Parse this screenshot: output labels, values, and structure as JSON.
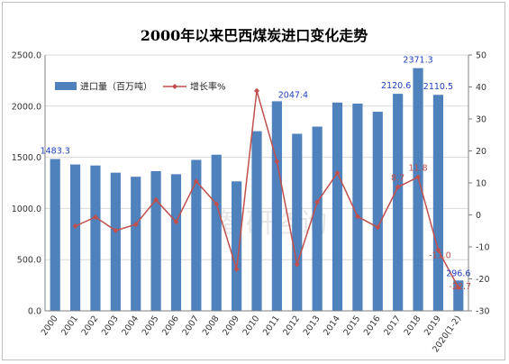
{
  "chart_data": {
    "type": "bar+line",
    "title": "2000年以来巴西煤炭进口变化走势",
    "categories": [
      "2000",
      "2001",
      "2002",
      "2003",
      "2004",
      "2005",
      "2006",
      "2007",
      "2008",
      "2009",
      "2010",
      "2011",
      "2012",
      "2013",
      "2014",
      "2015",
      "2016",
      "2017",
      "2018",
      "2019",
      "2020(1-2)"
    ],
    "series": [
      {
        "name": "进口量（百万吨）",
        "kind": "bar",
        "axis": "left",
        "color": "#4f81bd",
        "values": [
          1483.3,
          1430,
          1420,
          1350,
          1310,
          1365,
          1335,
          1475,
          1525,
          1265,
          1755,
          2047.4,
          1730,
          1800,
          2035,
          2025,
          1945,
          2120.6,
          2371.3,
          2110.5,
          296.6
        ]
      },
      {
        "name": "增长率%",
        "kind": "line",
        "axis": "right",
        "color": "#c0504d",
        "values": [
          null,
          -3.5,
          -0.7,
          -4.9,
          -3.0,
          4.7,
          -2.2,
          10.5,
          3.4,
          -17.0,
          38.8,
          16.7,
          -15.5,
          4.0,
          13.1,
          -0.5,
          -3.9,
          8.7,
          11.8,
          -11.0,
          -22.7
        ]
      }
    ],
    "ylim_left": [
      0,
      2500
    ],
    "yticks_left": [
      "0.0",
      "500.0",
      "1000.0",
      "1500.0",
      "2000.0",
      "2500.0"
    ],
    "ylim_right": [
      -30,
      50
    ],
    "yticks_right": [
      "-30",
      "-20",
      "-10",
      "0",
      "10",
      "20",
      "30",
      "40",
      "50"
    ],
    "bar_labels": [
      {
        "index": 0,
        "text": "1483.3"
      },
      {
        "index": 11,
        "text": "2047.4"
      },
      {
        "index": 17,
        "text": "2120.6"
      },
      {
        "index": 18,
        "text": "2371.3"
      },
      {
        "index": 19,
        "text": "2110.5"
      },
      {
        "index": 20,
        "text": "296.6"
      }
    ],
    "line_labels": [
      {
        "index": 17,
        "text": "8.7"
      },
      {
        "index": 18,
        "text": "11.8"
      },
      {
        "index": 19,
        "text": "-11.0"
      },
      {
        "index": 20,
        "text": "-22.7"
      }
    ],
    "legend_position": "top-left",
    "grid": true
  },
  "watermark": "智研咨询"
}
